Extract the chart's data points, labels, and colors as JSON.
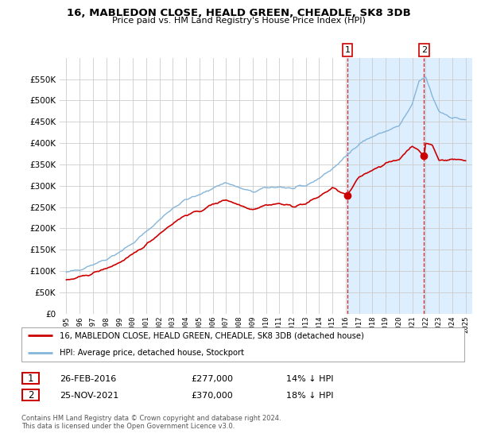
{
  "title": "16, MABLEDON CLOSE, HEALD GREEN, CHEADLE, SK8 3DB",
  "subtitle": "Price paid vs. HM Land Registry's House Price Index (HPI)",
  "legend_line1": "16, MABLEDON CLOSE, HEALD GREEN, CHEADLE, SK8 3DB (detached house)",
  "legend_line2": "HPI: Average price, detached house, Stockport",
  "footer": "Contains HM Land Registry data © Crown copyright and database right 2024.\nThis data is licensed under the Open Government Licence v3.0.",
  "transaction1_date": "26-FEB-2016",
  "transaction1_price": "£277,000",
  "transaction1_hpi": "14% ↓ HPI",
  "transaction2_date": "25-NOV-2021",
  "transaction2_price": "£370,000",
  "transaction2_hpi": "18% ↓ HPI",
  "sale1_year": 2016.12,
  "sale1_price": 277000,
  "sale2_year": 2021.88,
  "sale2_price": 370000,
  "red_color": "#cc0000",
  "blue_color": "#85b5d9",
  "shade_color": "#ddeeff",
  "dashed_color": "#cc0000",
  "grid_color": "#cccccc",
  "ylim_max": 600000,
  "xlim_start": 1994.5,
  "xlim_end": 2025.5
}
